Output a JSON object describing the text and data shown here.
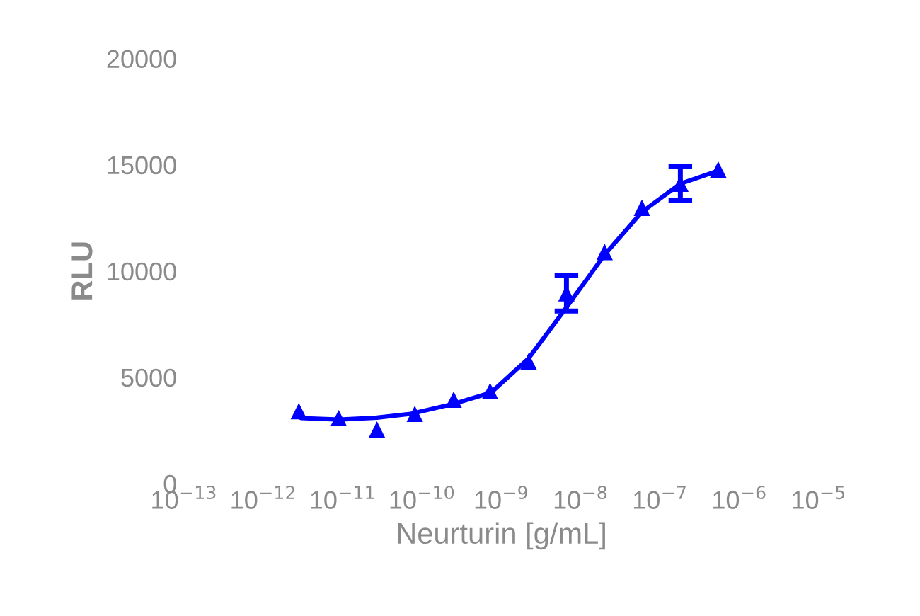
{
  "chart_data": {
    "type": "scatter",
    "xlabel": "Neurturin [g/mL]",
    "ylabel": "RLU",
    "log": "x",
    "grid": false,
    "xlim": [
      1e-13,
      1e-05
    ],
    "ylim": [
      0,
      20000
    ],
    "xticks": [
      {
        "value": 1e-13,
        "label": "10$^{−13}$"
      },
      {
        "value": 1e-12,
        "label": "10$^{−12}$"
      },
      {
        "value": 1e-11,
        "label": "10$^{−11}$"
      },
      {
        "value": 1e-10,
        "label": "10$^{−10}$"
      },
      {
        "value": 1e-09,
        "label": "10$^{−9}$"
      },
      {
        "value": 1e-08,
        "label": "10$^{−8}$"
      },
      {
        "value": 1e-07,
        "label": "10$^{−7}$"
      },
      {
        "value": 1e-06,
        "label": "10$^{−6}$"
      },
      {
        "value": 1e-05,
        "label": "10$^{−5}$"
      }
    ],
    "yticks": [
      0,
      5000,
      10000,
      15000,
      20000
    ],
    "series": [
      {
        "color": "#0000ff",
        "marker": "triangle",
        "x": [
          2.8e-12,
          8.9e-12,
          2.7e-11,
          8.1e-11,
          2.5e-10,
          7.2e-10,
          2.2e-09,
          6.6e-09,
          2e-08,
          5.9e-08,
          1.8e-07,
          5.4e-07
        ],
        "values": [
          3410,
          3080,
          2540,
          3280,
          3950,
          4350,
          5750,
          8960,
          10900,
          12980,
          14110,
          14780
        ],
        "errors": [
          null,
          null,
          null,
          null,
          null,
          null,
          null,
          840,
          null,
          null,
          800,
          null
        ]
      },
      {
        "type": "line",
        "color": "#0000ff",
        "marker": "none",
        "line_style": "solid",
        "x": [
          3e-12,
          9.1e-12,
          2.7e-11,
          7.2e-11,
          2.5e-10,
          7.4e-10,
          2.2e-09,
          6.6e-09,
          2e-08,
          5.9e-08,
          1.8e-07,
          5.4e-07
        ],
        "values": [
          3080,
          3010,
          3100,
          3280,
          3750,
          4280,
          5890,
          8290,
          10770,
          12780,
          14110,
          14720
        ]
      }
    ]
  }
}
